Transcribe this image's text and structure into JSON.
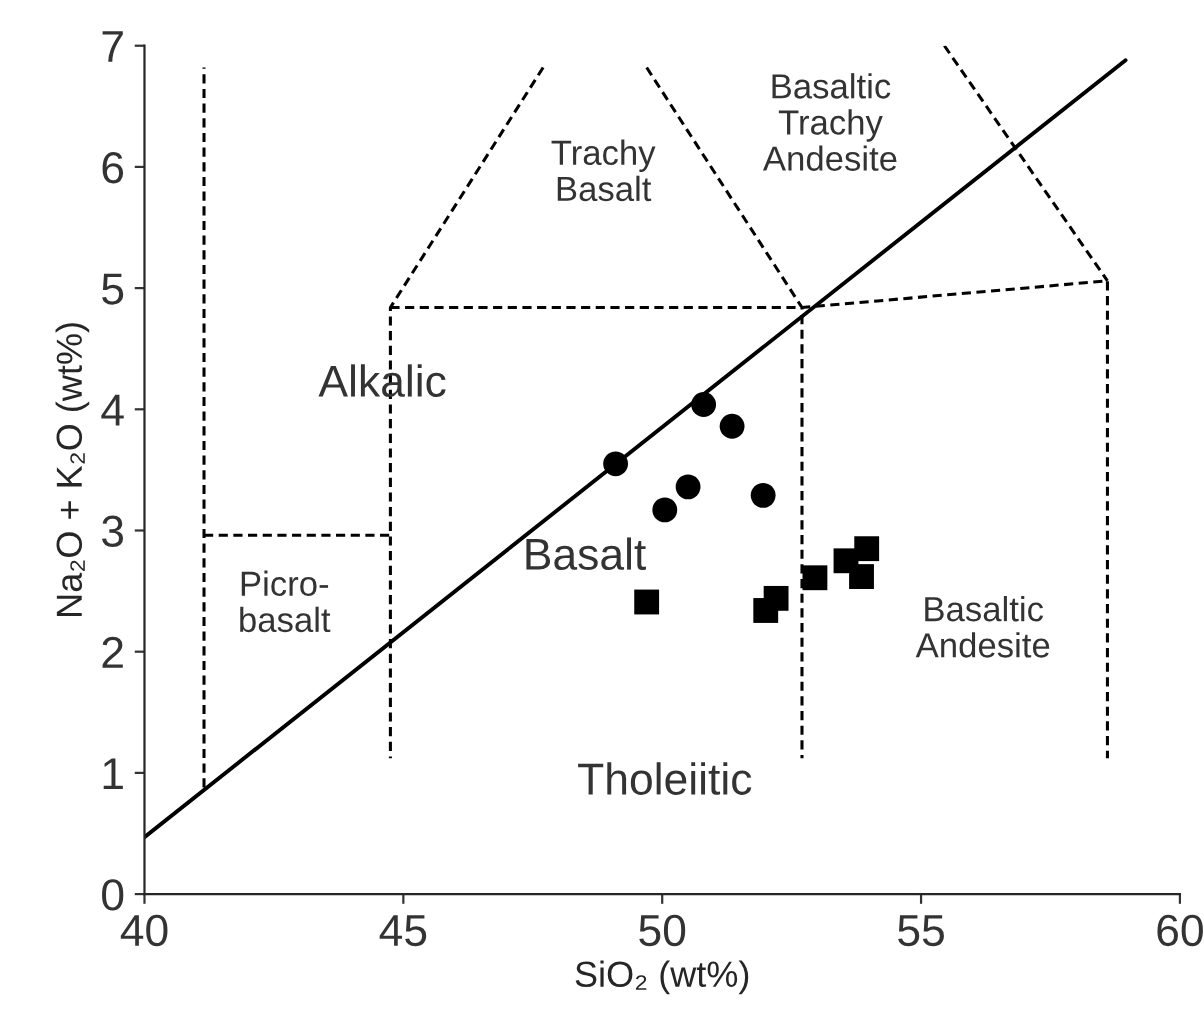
{
  "chart_data": {
    "type": "scatter",
    "xlabel": "SiO₂ (wt%)",
    "ylabel": "Na₂O + K₂O (wt%)",
    "xlim": [
      40,
      60
    ],
    "xticks": [
      40,
      45,
      50,
      55,
      60
    ],
    "ylim": [
      0,
      7
    ],
    "yticks": [
      0,
      1,
      2,
      3,
      4,
      5,
      6,
      7
    ],
    "grid": false,
    "legend": false,
    "series": [
      {
        "type": "scatter",
        "marker": "circle",
        "color": "#000000",
        "x": [
          49.1,
          50.8,
          51.35,
          50.5,
          50.05,
          51.95
        ],
        "values": [
          3.55,
          4.04,
          3.86,
          3.36,
          3.17,
          3.29
        ]
      },
      {
        "type": "scatter",
        "marker": "square",
        "color": "#000000",
        "x": [
          49.7,
          52.0,
          52.2,
          52.95,
          53.55,
          53.95,
          53.85
        ],
        "values": [
          2.41,
          2.34,
          2.44,
          2.61,
          2.75,
          2.85,
          2.62
        ]
      },
      {
        "type": "line",
        "line_style": "solid",
        "color": "#000000",
        "x": [
          40,
          58.95
        ],
        "values": [
          0.47,
          6.88
        ]
      },
      {
        "type": "line",
        "line_style": "dashed",
        "color": "#000000",
        "x": [
          41.15,
          41.15
        ],
        "values": [
          0.88,
          6.82
        ]
      },
      {
        "type": "line",
        "line_style": "dashed",
        "color": "#000000",
        "x": [
          41.15,
          44.75
        ],
        "values": [
          2.96,
          2.96
        ]
      },
      {
        "type": "line",
        "line_style": "dashed",
        "color": "#000000",
        "x": [
          47.7,
          44.75,
          44.75
        ],
        "values": [
          6.82,
          4.84,
          1.12
        ]
      },
      {
        "type": "line",
        "line_style": "dashed",
        "color": "#000000",
        "x": [
          44.75,
          52.7,
          58.6,
          58.6
        ],
        "values": [
          4.84,
          4.84,
          5.06,
          1.12
        ]
      },
      {
        "type": "line",
        "line_style": "dashed",
        "color": "#000000",
        "x": [
          49.7,
          52.7,
          52.7
        ],
        "values": [
          6.82,
          4.84,
          1.12
        ]
      },
      {
        "type": "line",
        "line_style": "dashed",
        "color": "#000000",
        "x": [
          55.45,
          58.6
        ],
        "values": [
          7.0,
          5.06
        ]
      }
    ],
    "annotations": [
      "Trachy\nBasalt",
      "Basaltic\nTrachy\nAndesite",
      "Alkalic",
      "Picro-\nbasalt",
      "Basalt",
      "Basaltic\nAndesite",
      "Tholeiitic"
    ]
  }
}
